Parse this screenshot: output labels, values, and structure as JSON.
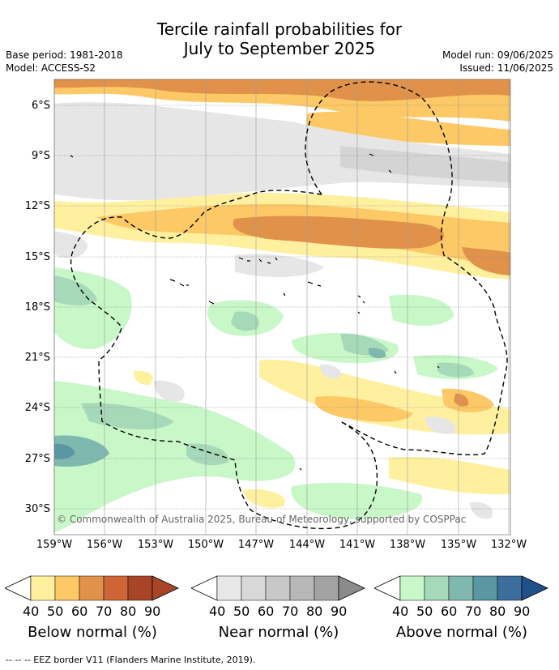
{
  "title_line1": "Tercile rainfall probabilities for",
  "title_line2": "July to September 2025",
  "meta_left": [
    "Base period: 1981-2018",
    "Model: ACCESS-S2"
  ],
  "meta_right": [
    "Model run: 09/06/2025",
    "Issued: 11/06/2025"
  ],
  "latitudes": [
    "6°S",
    "9°S",
    "12°S",
    "15°S",
    "18°S",
    "21°S",
    "24°S",
    "27°S",
    "30°S"
  ],
  "longitudes": [
    "159°W",
    "156°W",
    "153°W",
    "150°W",
    "147°W",
    "144°W",
    "141°W",
    "138°W",
    "135°W",
    "132°W"
  ],
  "copyright": "© Commonwealth of Australia 2025, Bureau of Meteorology, supported by COSPPac",
  "colorbars": [
    {
      "label": "Below normal (%)",
      "ticks": [
        "40",
        "50",
        "60",
        "70",
        "80",
        "90"
      ],
      "colors": [
        "#fff0a0",
        "#fdc966",
        "#e0924a",
        "#cd6536",
        "#a84526",
        "#a84526"
      ]
    },
    {
      "label": "Near normal (%)",
      "ticks": [
        "40",
        "50",
        "60",
        "70",
        "80",
        "90"
      ],
      "colors": [
        "#e8e8e8",
        "#d8d8d8",
        "#c8c8c8",
        "#b8b8b8",
        "#a3a3a3",
        "#8a8a8a"
      ]
    },
    {
      "label": "Above normal (%)",
      "ticks": [
        "40",
        "50",
        "60",
        "70",
        "80",
        "90"
      ],
      "colors": [
        "#c8f7c8",
        "#a6d9b8",
        "#7fb8ae",
        "#5a96a3",
        "#3c6d9c",
        "#20508a"
      ]
    }
  ],
  "footnote": "-- -- -- EEZ border V11 (Flanders Marine Institute, 2019)."
}
